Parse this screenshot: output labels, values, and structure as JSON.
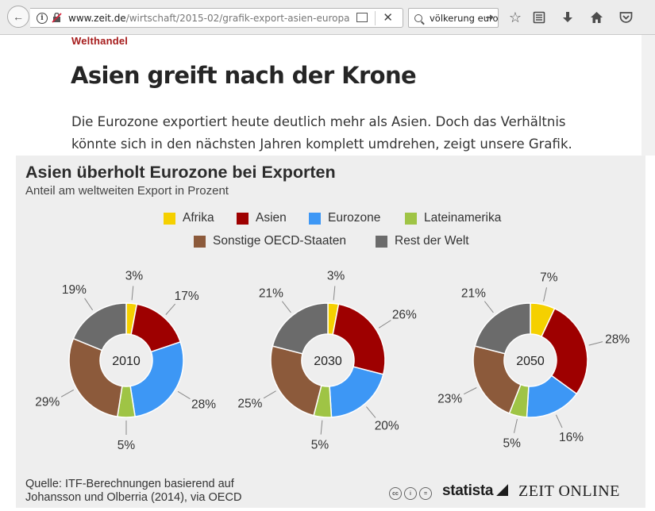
{
  "browser": {
    "url_host": "www.zeit.de",
    "url_path": "/wirtschaft/2015-02/grafik-export-asien-europa",
    "search_value": "völkerung euro"
  },
  "article": {
    "rubric": "Welthandel",
    "headline": "Asien greift nach der Krone",
    "lead": "Die Eurozone exportiert heute deutlich mehr als Asien. Doch das Verhältnis könnte sich in den nächsten Jahren komplett umdrehen, zeigt unsere Grafik."
  },
  "chart_data": {
    "type": "pie",
    "title": "Asien überholt Eurozone bei Exporten",
    "subtitle": "Anteil am weltweiten Export in Prozent",
    "categories": [
      "Afrika",
      "Asien",
      "Eurozone",
      "Lateinamerika",
      "Sonstige OECD-Staaten",
      "Rest der Welt"
    ],
    "colors": [
      "#f5d000",
      "#9e0000",
      "#3d97f5",
      "#9fc445",
      "#8c5a3b",
      "#6b6b6b"
    ],
    "series": [
      {
        "name": "2010",
        "values": [
          3,
          17,
          28,
          5,
          29,
          19
        ]
      },
      {
        "name": "2030",
        "values": [
          3,
          26,
          20,
          5,
          25,
          21
        ]
      },
      {
        "name": "2050",
        "values": [
          7,
          28,
          16,
          5,
          23,
          21
        ]
      }
    ],
    "unit": "%",
    "legend": "top",
    "source": "Quelle: ITF-Berechnungen basierend auf Johansson und Olberria (2014), via OECD",
    "brand": "statista",
    "publisher": "ZEIT ONLINE"
  }
}
